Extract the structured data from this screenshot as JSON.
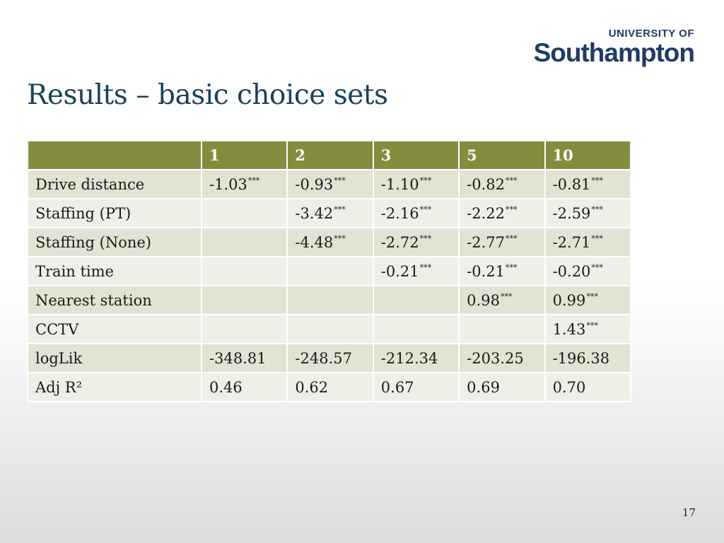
{
  "logo": {
    "top": "UNIVERSITY OF",
    "main": "Southampton"
  },
  "title": "Results – basic choice sets",
  "table": {
    "headers": [
      "",
      "1",
      "2",
      "3",
      "5",
      "10"
    ],
    "rows": [
      {
        "label": "Drive distance",
        "cells": [
          {
            "v": "-1.03",
            "s": "***"
          },
          {
            "v": "-0.93",
            "s": "***"
          },
          {
            "v": "-1.10",
            "s": "***"
          },
          {
            "v": "-0.82",
            "s": "***"
          },
          {
            "v": "-0.81",
            "s": "***"
          }
        ]
      },
      {
        "label": "Staffing (PT)",
        "cells": [
          {
            "v": "",
            "s": ""
          },
          {
            "v": "-3.42",
            "s": "***"
          },
          {
            "v": "-2.16",
            "s": "***"
          },
          {
            "v": "-2.22",
            "s": "***"
          },
          {
            "v": "-2.59",
            "s": "***"
          }
        ]
      },
      {
        "label": "Staffing (None)",
        "cells": [
          {
            "v": "",
            "s": ""
          },
          {
            "v": "-4.48",
            "s": "***"
          },
          {
            "v": "-2.72",
            "s": "***"
          },
          {
            "v": "-2.77",
            "s": "***"
          },
          {
            "v": "-2.71",
            "s": "***"
          }
        ]
      },
      {
        "label": "Train time",
        "cells": [
          {
            "v": "",
            "s": ""
          },
          {
            "v": "",
            "s": ""
          },
          {
            "v": "-0.21",
            "s": "***"
          },
          {
            "v": "-0.21",
            "s": "***"
          },
          {
            "v": "-0.20",
            "s": "***"
          }
        ]
      },
      {
        "label": "Nearest station",
        "cells": [
          {
            "v": "",
            "s": ""
          },
          {
            "v": "",
            "s": ""
          },
          {
            "v": "",
            "s": ""
          },
          {
            "v": "0.98",
            "s": "***"
          },
          {
            "v": "0.99",
            "s": "***"
          }
        ]
      },
      {
        "label": "CCTV",
        "cells": [
          {
            "v": "",
            "s": ""
          },
          {
            "v": "",
            "s": ""
          },
          {
            "v": "",
            "s": ""
          },
          {
            "v": "",
            "s": ""
          },
          {
            "v": "1.43",
            "s": "***"
          }
        ]
      },
      {
        "label": "logLik",
        "cells": [
          {
            "v": "-348.81",
            "s": ""
          },
          {
            "v": "-248.57",
            "s": ""
          },
          {
            "v": "-212.34",
            "s": ""
          },
          {
            "v": "-203.25",
            "s": ""
          },
          {
            "v": "-196.38",
            "s": ""
          }
        ]
      },
      {
        "label": "Adj R²",
        "cells": [
          {
            "v": "0.46",
            "s": ""
          },
          {
            "v": "0.62",
            "s": ""
          },
          {
            "v": "0.67",
            "s": ""
          },
          {
            "v": "0.69",
            "s": ""
          },
          {
            "v": "0.70",
            "s": ""
          }
        ]
      }
    ]
  },
  "page_number": "17"
}
